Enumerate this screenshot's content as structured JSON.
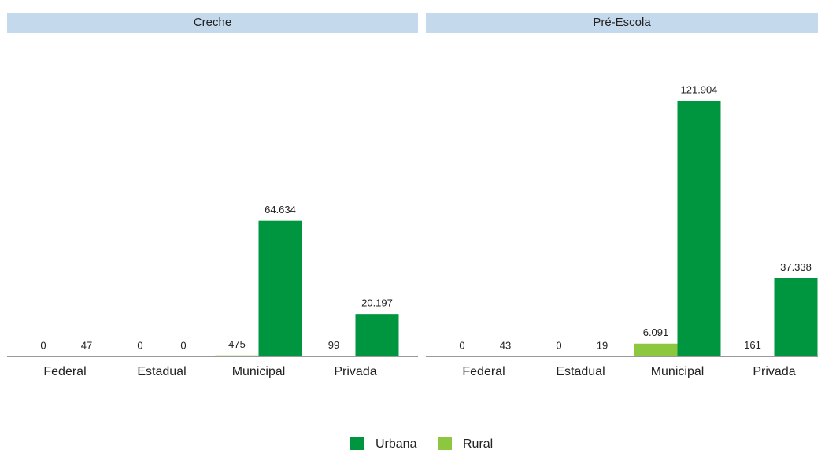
{
  "chart_data": [
    {
      "type": "bar",
      "title": "Creche",
      "categories": [
        "Federal",
        "Estadual",
        "Municipal",
        "Privada"
      ],
      "series": [
        {
          "name": "Urbana",
          "color": "#009640",
          "values": [
            47,
            0,
            64634,
            20197
          ],
          "value_labels": [
            "47",
            "0",
            "64.634",
            "20.197"
          ]
        },
        {
          "name": "Rural",
          "color": "#8dc63f",
          "values": [
            0,
            0,
            475,
            99
          ],
          "value_labels": [
            "0",
            "0",
            "475",
            "99"
          ]
        }
      ]
    },
    {
      "type": "bar",
      "title": "Pré-Escola",
      "categories": [
        "Federal",
        "Estadual",
        "Municipal",
        "Privada"
      ],
      "series": [
        {
          "name": "Urbana",
          "color": "#009640",
          "values": [
            43,
            19,
            121904,
            37338
          ],
          "value_labels": [
            "43",
            "19",
            "121.904",
            "37.338"
          ]
        },
        {
          "name": "Rural",
          "color": "#8dc63f",
          "values": [
            0,
            0,
            6091,
            161
          ],
          "value_labels": [
            "0",
            "0",
            "6.091",
            "161"
          ]
        }
      ]
    }
  ]
}
